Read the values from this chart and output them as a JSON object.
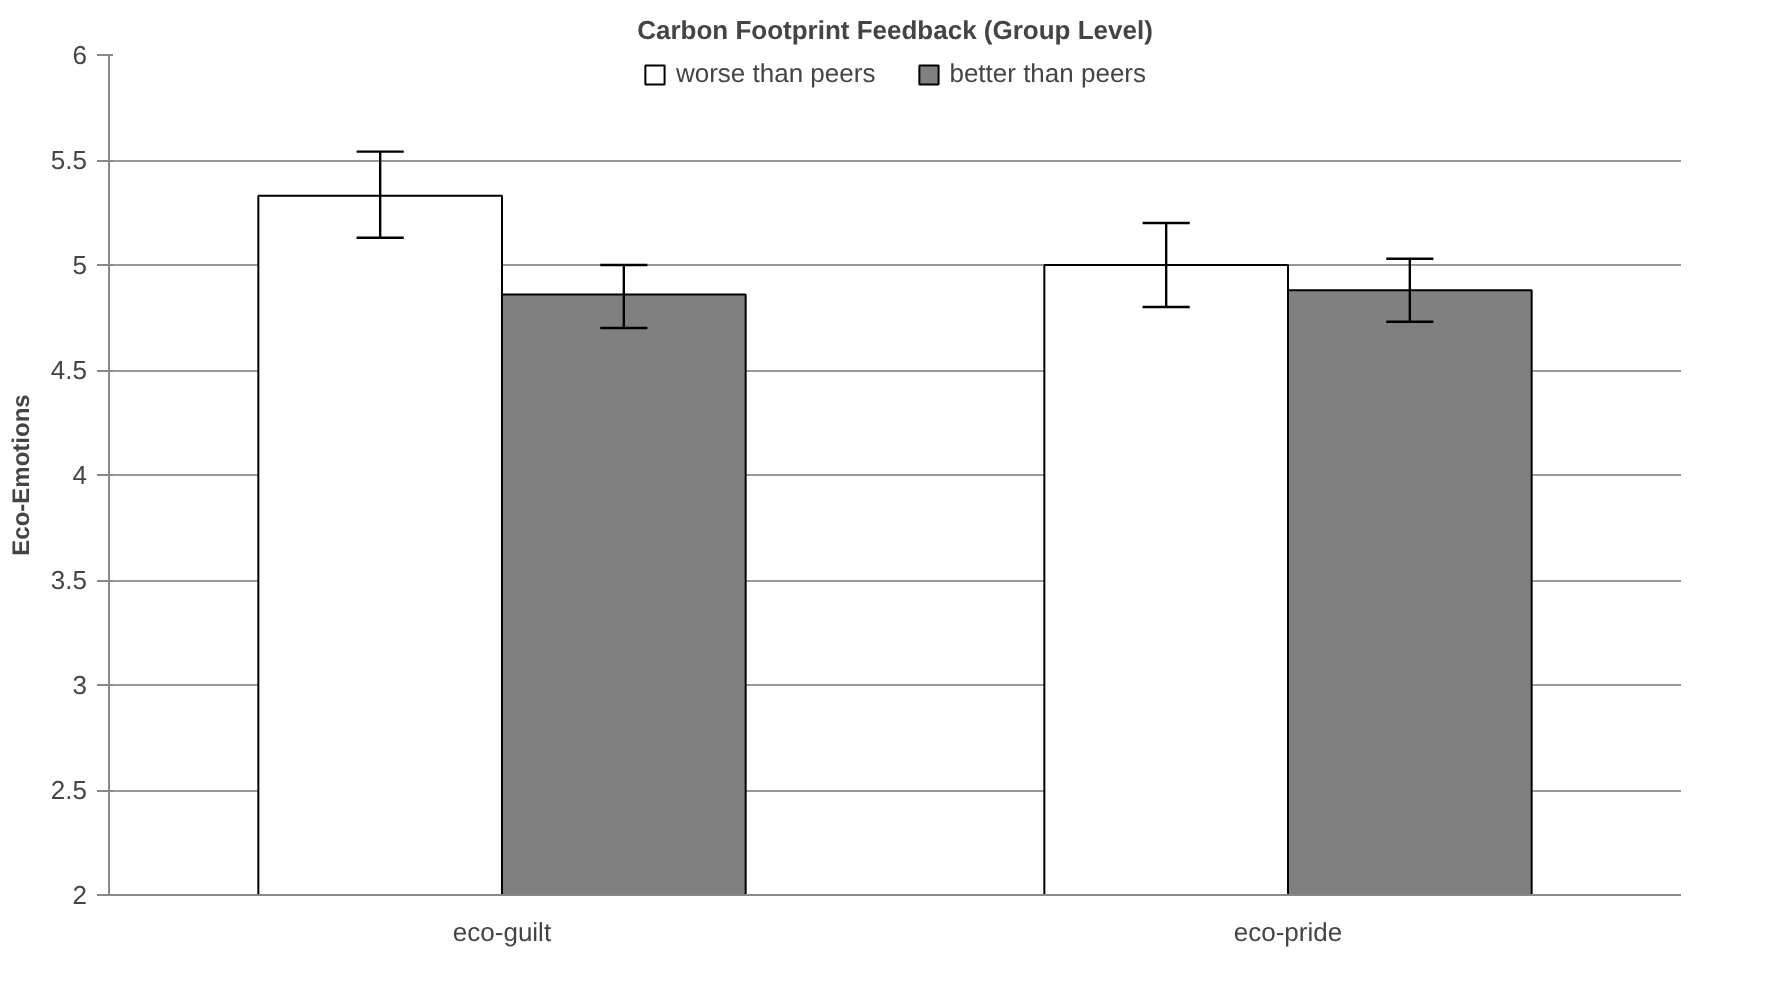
{
  "chart_data": {
    "type": "bar",
    "title": "Carbon Footprint Feedback (Group Level)",
    "ylabel": "Eco-Emotions",
    "categories": [
      "eco-guilt",
      "eco-pride"
    ],
    "series": [
      {
        "name": "worse than peers",
        "color": "#ffffff",
        "values": [
          5.33,
          5.0
        ],
        "errors": [
          [
            5.13,
            5.54
          ],
          [
            4.8,
            5.2
          ]
        ]
      },
      {
        "name": "better than peers",
        "color": "#808080",
        "values": [
          4.86,
          4.88
        ],
        "errors": [
          [
            4.7,
            5.0
          ],
          [
            4.73,
            5.03
          ]
        ]
      }
    ],
    "ylim": [
      2,
      6
    ],
    "yticks": [
      2,
      2.5,
      3,
      3.5,
      4,
      4.5,
      5,
      5.5,
      6
    ],
    "grid": "y",
    "legend": "top"
  }
}
